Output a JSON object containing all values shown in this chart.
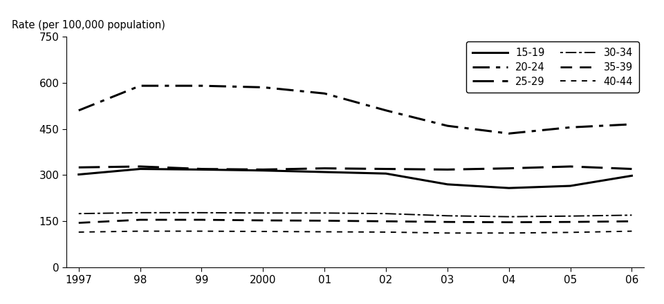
{
  "years": [
    1997,
    1998,
    1999,
    2000,
    2001,
    2002,
    2003,
    2004,
    2005,
    2006
  ],
  "series": {
    "15-19": [
      302,
      320,
      318,
      315,
      310,
      305,
      270,
      258,
      265,
      298
    ],
    "20-24": [
      510,
      590,
      590,
      585,
      565,
      510,
      460,
      435,
      455,
      465
    ],
    "25-29": [
      325,
      328,
      320,
      318,
      322,
      320,
      318,
      322,
      328,
      320
    ],
    "30-34": [
      175,
      178,
      178,
      177,
      177,
      175,
      168,
      165,
      167,
      170
    ],
    "35-39": [
      145,
      155,
      155,
      153,
      152,
      150,
      148,
      147,
      148,
      150
    ],
    "40-44": [
      115,
      118,
      118,
      117,
      116,
      115,
      112,
      112,
      114,
      118
    ]
  },
  "ylabel": "Rate (per 100,000 population)",
  "ylim": [
    0,
    750
  ],
  "yticks": [
    0,
    150,
    300,
    450,
    600,
    750
  ],
  "xtick_labels": [
    "1997",
    "98",
    "99",
    "2000",
    "01",
    "02",
    "03",
    "04",
    "05",
    "06"
  ],
  "legend_order_left": [
    "15-19",
    "25-29",
    "35-39"
  ],
  "legend_order_right": [
    "20-24",
    "30-34",
    "40-44"
  ],
  "color": "#000000",
  "background_color": "#ffffff"
}
